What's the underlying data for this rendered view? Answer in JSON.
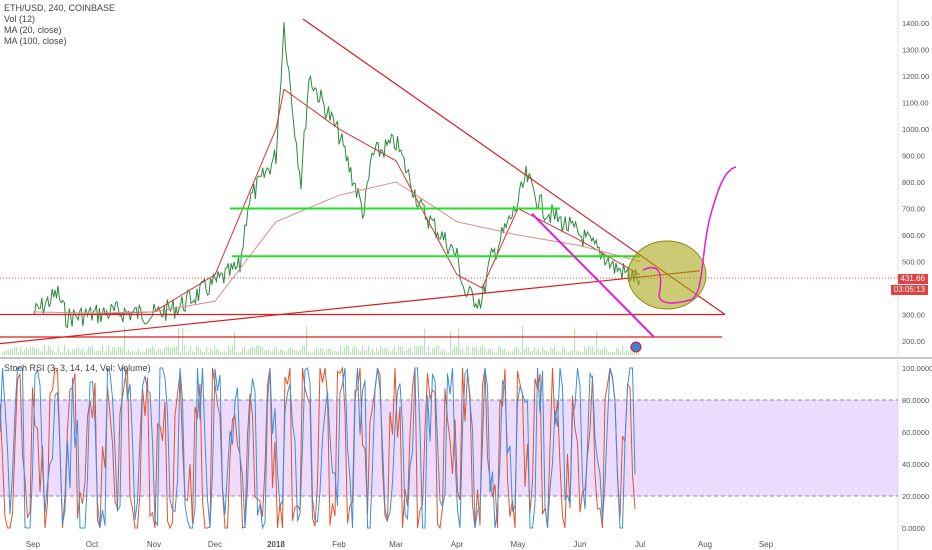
{
  "header": {
    "symbol_line": "ETH/USD, 240, COINBASE",
    "vol_label": "Vol (12)",
    "ma20_label": "MA (20, close)",
    "ma100_label": "MA (100, close)"
  },
  "price_tag": {
    "last_price": "431.66",
    "countdown": "03:05:13",
    "color": "#e0403f"
  },
  "stoch_label": "Stoch RSI (3, 3, 14, 14, Vol: Volume)",
  "colors": {
    "price": "#2b8a3e",
    "ma20": "#d0343a",
    "ma100": "#e08a8a",
    "trend": "#d81f1f",
    "support": "#22e022",
    "channel": "#e21fd1",
    "forecast": "#e21fd1",
    "ellipse_fill": "#a8a81a",
    "stoch_k": "#3d8fd6",
    "stoch_d": "#e0552b",
    "band": "#cc99ff"
  },
  "chart_data": [
    {
      "type": "line",
      "title": "ETH/USD, 240, COINBASE",
      "x_ticks": [
        "Sep",
        "Oct",
        "Nov",
        "Dec",
        "2018",
        "Feb",
        "Mar",
        "Apr",
        "May",
        "Jun",
        "Jul",
        "Aug",
        "Sep"
      ],
      "y_ticks": [
        "200.00",
        "300.00",
        "400.00",
        "500.00",
        "600.00",
        "700.00",
        "800.00",
        "900.00",
        "1000.00",
        "1100.00",
        "1200.00",
        "1300.00",
        "1400.00"
      ],
      "ylim": [
        150,
        1460
      ],
      "last_price": 431.66,
      "series": [
        {
          "name": "ETH/USD",
          "points": [
            [
              "Sep",
              300
            ],
            [
              "Sep+",
              380
            ],
            [
              "Sep+",
              290
            ],
            [
              "Oct",
              300
            ],
            [
              "Oct+",
              310
            ],
            [
              "Nov",
              300
            ],
            [
              "Nov+",
              330
            ],
            [
              "Dec",
              420
            ],
            [
              "Dec+",
              480
            ],
            [
              "Dec+",
              720
            ],
            [
              "2018",
              900
            ],
            [
              "2018",
              1400
            ],
            [
              "2018",
              1100
            ],
            [
              "2018+",
              800
            ],
            [
              "2018+",
              1200
            ],
            [
              "Feb",
              980
            ],
            [
              "Feb+",
              680
            ],
            [
              "Feb+",
              900
            ],
            [
              "Mar",
              950
            ],
            [
              "Mar",
              870
            ],
            [
              "Mar+",
              700
            ],
            [
              "Apr",
              520
            ],
            [
              "Apr",
              380
            ],
            [
              "Apr+",
              350
            ],
            [
              "Apr+",
              500
            ],
            [
              "May",
              720
            ],
            [
              "May",
              820
            ],
            [
              "May+",
              700
            ],
            [
              "Jun",
              600
            ],
            [
              "Jun+",
              520
            ],
            [
              "Jun+",
              480
            ],
            [
              "Jul",
              430
            ]
          ]
        },
        {
          "name": "MA (20, close)",
          "points": [
            [
              "Sep",
              300
            ],
            [
              "Oct",
              300
            ],
            [
              "Nov",
              310
            ],
            [
              "Dec",
              450
            ],
            [
              "2018",
              1000
            ],
            [
              "2018",
              1150
            ],
            [
              "Feb",
              1000
            ],
            [
              "Mar",
              880
            ],
            [
              "Apr",
              450
            ],
            [
              "Apr+",
              400
            ],
            [
              "May",
              700
            ],
            [
              "Jun",
              580
            ],
            [
              "Jul",
              450
            ]
          ]
        },
        {
          "name": "MA (100, close)",
          "points": [
            [
              "Sep",
              310
            ],
            [
              "Oct",
              305
            ],
            [
              "Nov",
              310
            ],
            [
              "Dec",
              350
            ],
            [
              "2018",
              650
            ],
            [
              "Feb",
              750
            ],
            [
              "Mar",
              800
            ],
            [
              "Apr",
              650
            ],
            [
              "May",
              600
            ],
            [
              "Jun",
              560
            ],
            [
              "Jul",
              500
            ]
          ]
        }
      ],
      "annotations": {
        "resistance_trendline": [
          [
            "2018",
            1415
          ],
          [
            "Aug",
            300
          ]
        ],
        "support_trendline": [
          [
            "Sep",
            190
          ],
          [
            "Jul",
            465
          ]
        ],
        "horizontal_levels": [
          300,
          520,
          700,
          215
        ],
        "channel_line": [
          [
            "May",
            680
          ],
          [
            "Jun+",
            215
          ]
        ],
        "forecast_path": [
          [
            "Jul",
            470
          ],
          [
            "Jul",
            360
          ],
          [
            "Aug",
            340
          ],
          [
            "Aug",
            850
          ]
        ]
      }
    },
    {
      "type": "line",
      "title": "Stoch RSI (3, 3, 14, 14, Vol: Volume)",
      "y_ticks": [
        "0.0000",
        "20.0000",
        "40.0000",
        "60.0000",
        "80.0000",
        "100.0000"
      ],
      "ylim": [
        -5,
        105
      ],
      "bands": [
        20,
        80
      ],
      "series": [
        {
          "name": "K"
        },
        {
          "name": "D"
        }
      ]
    }
  ]
}
